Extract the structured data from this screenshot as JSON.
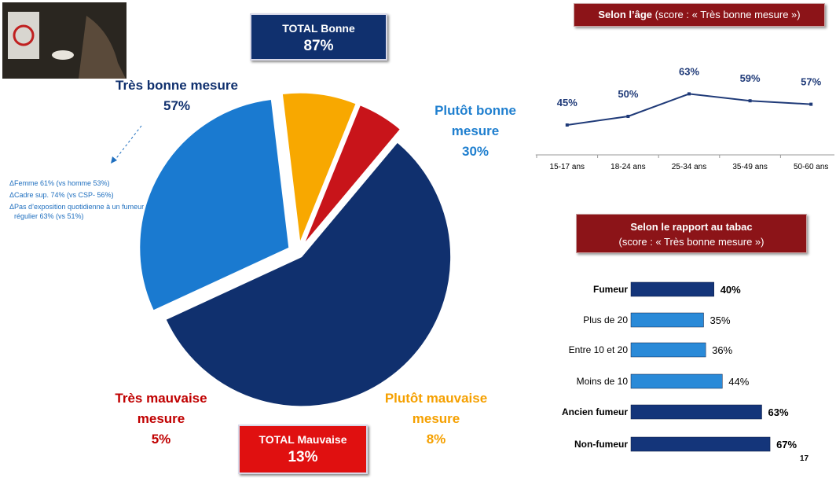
{
  "chart_data": [
    {
      "type": "pie",
      "categories": [
        "Très bonne mesure",
        "Plutôt bonne mesure",
        "Plutôt mauvaise mesure",
        "Très mauvaise mesure"
      ],
      "values": [
        57,
        30,
        8,
        5
      ],
      "value_labels": [
        "57%",
        "30%",
        "8%",
        "5%"
      ],
      "colors": [
        "#10306e",
        "#1a7ad0",
        "#f8a800",
        "#c8141a"
      ],
      "label_colors": [
        "#10306e",
        "#1f7fcf",
        "#f5a000",
        "#c00000"
      ]
    },
    {
      "type": "line",
      "title": "Selon l’âge",
      "subtitle": "(score  : « Très bonne mesure »)",
      "categories": [
        "15-17 ans",
        "18-24 ans",
        "25-34 ans",
        "35-49 ans",
        "50-60 ans"
      ],
      "values": [
        45,
        50,
        63,
        59,
        57
      ],
      "value_labels": [
        "45%",
        "50%",
        "63%",
        "59%",
        "57%"
      ],
      "ylim": [
        40,
        65
      ],
      "color": "#1f3a78"
    },
    {
      "type": "hbar",
      "title": "Selon le rapport au tabac",
      "subtitle": "(score  : « Très bonne mesure »)",
      "categories": [
        "Fumeur",
        "Plus de 20",
        "Entre 10 et 20",
        "Moins de 10",
        "Ancien fumeur",
        "Non-fumeur"
      ],
      "values": [
        40,
        35,
        36,
        44,
        63,
        67
      ],
      "value_labels": [
        "40%",
        "35%",
        "36%",
        "44%",
        "63%",
        "67%"
      ],
      "colors": [
        "#14357a",
        "#2a8ad8",
        "#2a8ad8",
        "#2a8ad8",
        "#14357a",
        "#14357a"
      ],
      "xlim": [
        0,
        70
      ]
    }
  ],
  "totals": [
    {
      "label": "TOTAL Bonne",
      "value": 87,
      "value_label": "87%",
      "color": "#10306e"
    },
    {
      "label": "TOTAL Mauvaise",
      "value": 13,
      "value_label": "13%",
      "color": "#e01010"
    }
  ],
  "notes": {
    "marker": "Δ",
    "items": [
      "Femme 61% (vs homme 53%)",
      "Cadre sup. 74% (vs CSP- 56%)",
      "Pas  d’exposition quotidienne à un fumeur régulier 63% (vs 51%)"
    ]
  },
  "page_number": 17
}
